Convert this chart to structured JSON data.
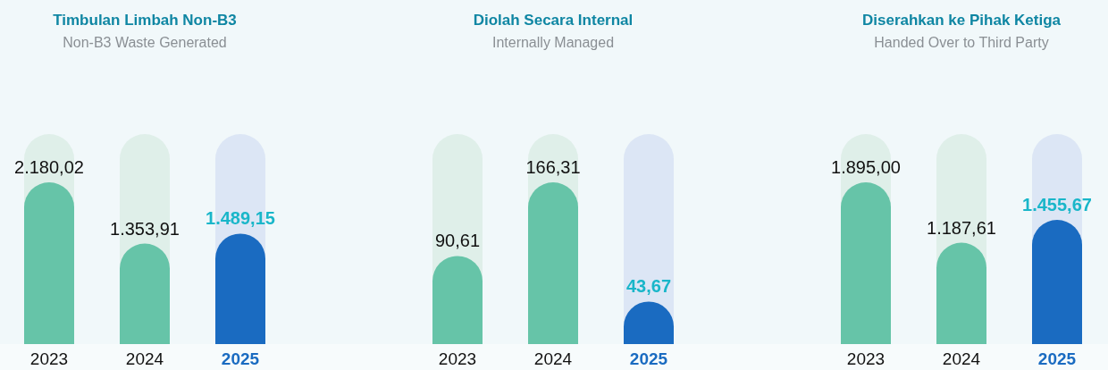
{
  "chart_data": [
    {
      "type": "bar",
      "title": "Timbulan Limbah Non-B3",
      "subtitle": "Non-B3 Waste Generated",
      "categories": [
        "2023",
        "2024",
        "2025"
      ],
      "values": [
        2180.02,
        1353.91,
        1489.15
      ],
      "value_labels": [
        "2.180,02",
        "1.353,91",
        "1.489,15"
      ],
      "colors": [
        "#66c4a8",
        "#66c4a8",
        "#1a6bc1"
      ]
    },
    {
      "type": "bar",
      "title": "Diolah Secara Internal",
      "subtitle": "Internally Managed",
      "categories": [
        "2023",
        "2024",
        "2025"
      ],
      "values": [
        90.61,
        166.31,
        43.67
      ],
      "value_labels": [
        "90,61",
        "166,31",
        "43,67"
      ],
      "colors": [
        "#66c4a8",
        "#66c4a8",
        "#1a6bc1"
      ]
    },
    {
      "type": "bar",
      "title": "Diserahkan ke Pihak Ketiga",
      "subtitle": "Handed Over to Third Party",
      "categories": [
        "2023",
        "2024",
        "2025"
      ],
      "values": [
        1895.0,
        1187.61,
        1455.67
      ],
      "value_labels": [
        "1.895,00",
        "1.187,61",
        "1.455,67"
      ],
      "colors": [
        "#66c4a8",
        "#66c4a8",
        "#1a6bc1"
      ]
    }
  ]
}
